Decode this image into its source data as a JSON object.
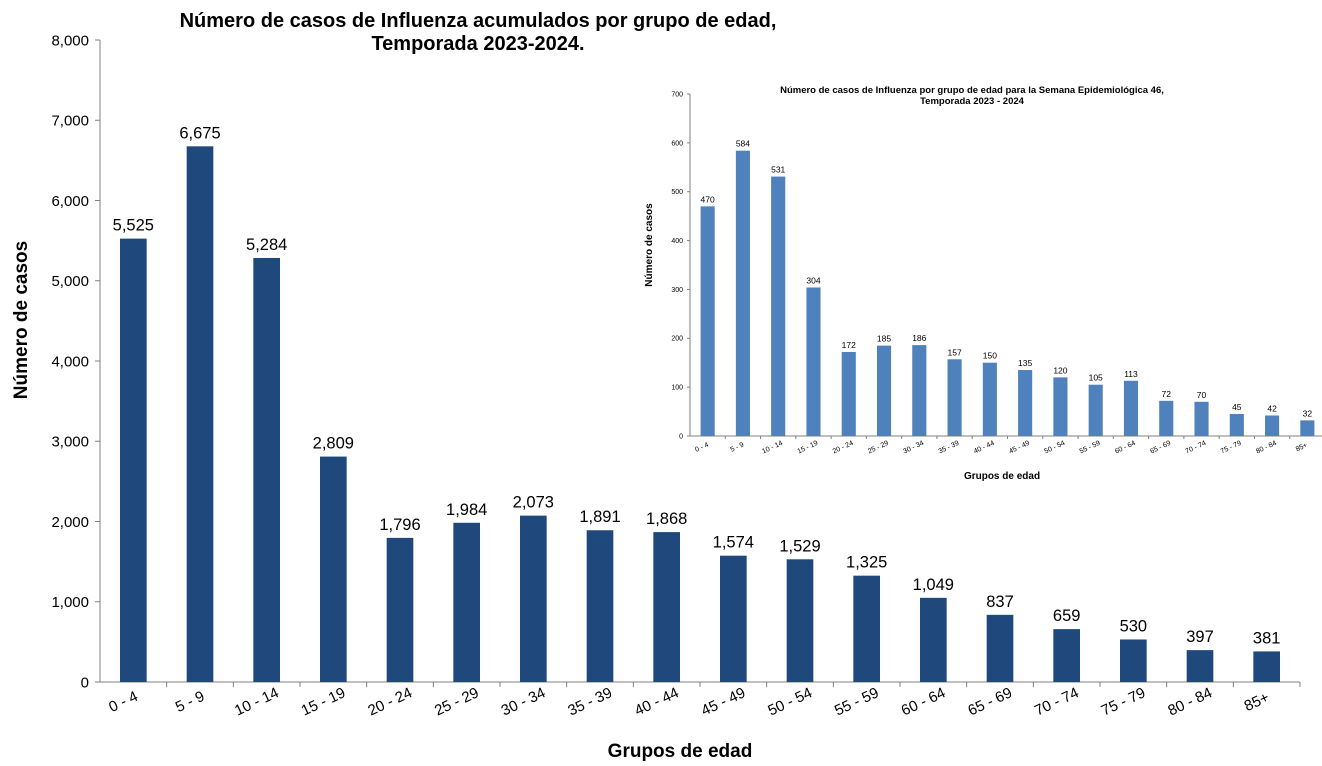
{
  "chart_data": [
    {
      "type": "bar",
      "title_lines": [
        "Número de casos de Influenza acumulados por grupo de edad,",
        "Temporada 2023-2024."
      ],
      "xlabel": "Grupos de edad",
      "ylabel": "Número de casos",
      "ylim": [
        0,
        8000
      ],
      "yticks": [
        "0",
        "1,000",
        "2,000",
        "3,000",
        "4,000",
        "5,000",
        "6,000",
        "7,000",
        "8,000"
      ],
      "categories": [
        "0 - 4",
        "5 - 9",
        "10 - 14",
        "15 - 19",
        "20 - 24",
        "25 - 29",
        "30 - 34",
        "35 - 39",
        "40 - 44",
        "45 - 49",
        "50 - 54",
        "55 - 59",
        "60 - 64",
        "65 - 69",
        "70 - 74",
        "75 - 79",
        "80 - 84",
        "85+"
      ],
      "values": [
        5525,
        6675,
        5284,
        2809,
        1796,
        1984,
        2073,
        1891,
        1868,
        1574,
        1529,
        1325,
        1049,
        837,
        659,
        530,
        397,
        381
      ],
      "value_labels": [
        "5,525",
        "6,675",
        "5,284",
        "2,809",
        "1,796",
        "1,984",
        "2,073",
        "1,891",
        "1,868",
        "1,574",
        "1,529",
        "1,325",
        "1,049",
        "837",
        "659",
        "530",
        "397",
        "381"
      ],
      "bar_color": "#1f497d",
      "grid": false
    },
    {
      "type": "bar",
      "title_lines": [
        "Número de casos de Influenza por grupo de edad para la Semana Epidemiológica 46,",
        "Temporada  2023 - 2024"
      ],
      "xlabel": "Grupos de edad",
      "ylabel": "Número de casos",
      "ylim": [
        0,
        700
      ],
      "yticks": [
        "0",
        "100",
        "200",
        "300",
        "400",
        "500",
        "600",
        "700"
      ],
      "categories": [
        "0 - 4",
        "5 - 9",
        "10 - 14",
        "15 - 19",
        "20 - 24",
        "25 - 29",
        "30 - 34",
        "35 - 39",
        "40 - 44",
        "45 - 49",
        "50 - 54",
        "55 - 59",
        "60 - 64",
        "65 - 69",
        "70 - 74",
        "75 - 79",
        "80 - 84",
        "85+"
      ],
      "values": [
        470,
        584,
        531,
        304,
        172,
        185,
        186,
        157,
        150,
        135,
        120,
        105,
        113,
        72,
        70,
        45,
        42,
        32
      ],
      "value_labels": [
        "470",
        "584",
        "531",
        "304",
        "172",
        "185",
        "186",
        "157",
        "150",
        "135",
        "120",
        "105",
        "113",
        "72",
        "70",
        "45",
        "42",
        "32"
      ],
      "bar_color": "#4f81bd",
      "grid": false
    }
  ]
}
